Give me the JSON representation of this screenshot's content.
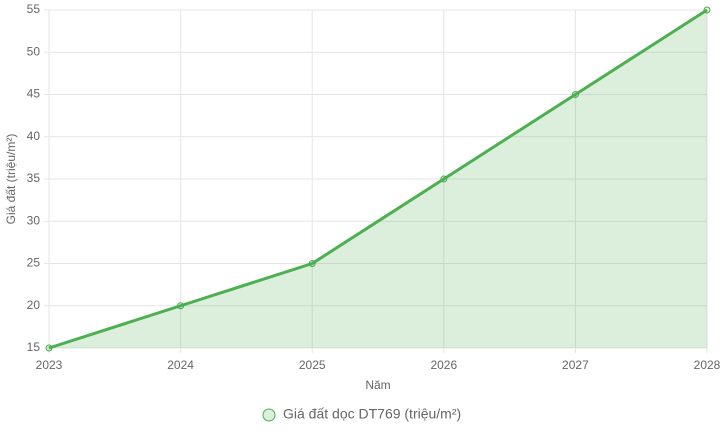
{
  "chart_data": {
    "type": "line",
    "x_label": "Năm",
    "y_label": "Giá đất (triệu/m²)",
    "categories": [
      "2023",
      "2024",
      "2025",
      "2026",
      "2027",
      "2028"
    ],
    "series": [
      {
        "name": "Giá đất dọc DT769 (triệu/m²)",
        "color": "#4caf50",
        "fill": "rgba(76,175,80,0.2)",
        "values": [
          15,
          20,
          25,
          35,
          45,
          55
        ]
      }
    ],
    "ylim": [
      15,
      55
    ],
    "yticks": [
      15,
      20,
      25,
      30,
      35,
      40,
      45,
      50,
      55
    ],
    "grid": true,
    "legend": "bottom"
  }
}
